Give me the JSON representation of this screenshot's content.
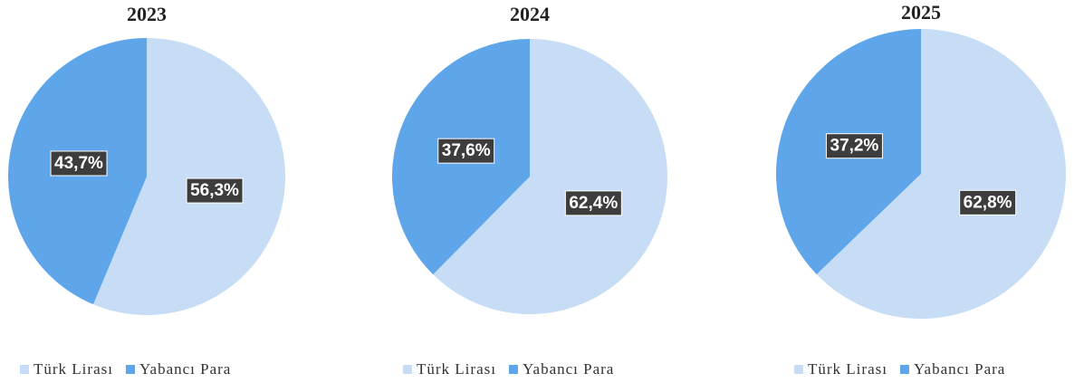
{
  "chart_data": [
    {
      "type": "pie",
      "title": "2023",
      "categories": [
        "Türk Lirası",
        "Yabancı Para"
      ],
      "values": [
        56.3,
        43.7
      ],
      "value_labels": [
        "56,3%",
        "43,7%"
      ],
      "colors": [
        "#c6ddf5",
        "#5ea5ea"
      ]
    },
    {
      "type": "pie",
      "title": "2024",
      "categories": [
        "Türk Lirası",
        "Yabancı Para"
      ],
      "values": [
        62.4,
        37.6
      ],
      "value_labels": [
        "62,4%",
        "37,6%"
      ],
      "colors": [
        "#c6ddf5",
        "#5ea5ea"
      ]
    },
    {
      "type": "pie",
      "title": "2025",
      "categories": [
        "Türk Lirası",
        "Yabancı Para"
      ],
      "values": [
        62.8,
        37.2
      ],
      "value_labels": [
        "62,8%",
        "37,2%"
      ],
      "colors": [
        "#c6ddf5",
        "#5ea5ea"
      ]
    }
  ]
}
